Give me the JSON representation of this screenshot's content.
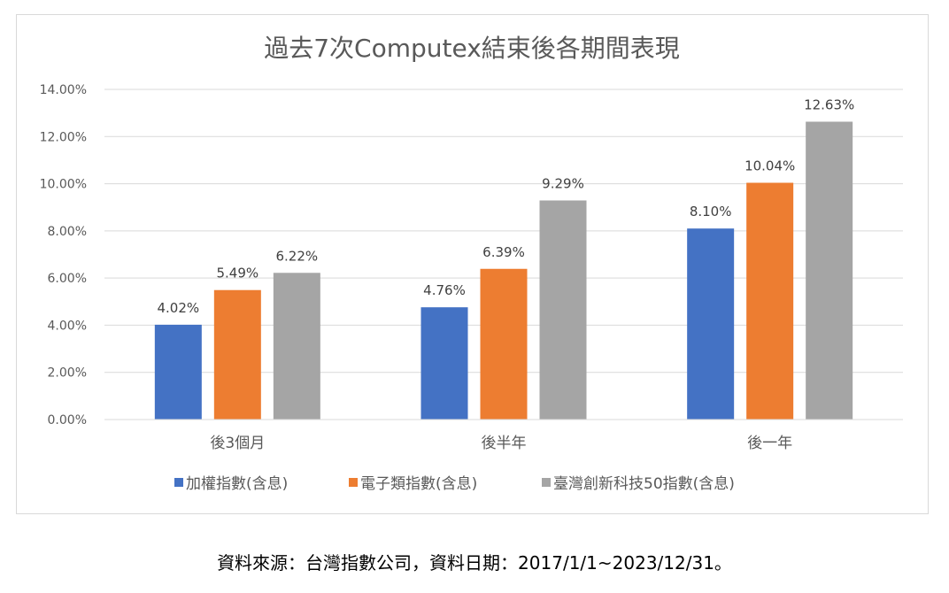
{
  "chart_data": {
    "type": "bar",
    "title": "過去7次Computex結束後各期間表現",
    "categories": [
      "後3個月",
      "後半年",
      "後一年"
    ],
    "series": [
      {
        "name": "加權指數(含息)",
        "color": "#4472C4",
        "values": [
          4.02,
          4.76,
          8.1
        ],
        "labels": [
          "4.02%",
          "4.76%",
          "8.10%"
        ]
      },
      {
        "name": "電子類指數(含息)",
        "color": "#ED7D31",
        "values": [
          5.49,
          6.39,
          10.04
        ],
        "labels": [
          "5.49%",
          "6.39%",
          "10.04%"
        ]
      },
      {
        "name": "臺灣創新科技50指數(含息)",
        "color": "#A5A5A5",
        "values": [
          6.22,
          9.29,
          12.63
        ],
        "labels": [
          "6.22%",
          "9.29%",
          "12.63%"
        ]
      }
    ],
    "yticks": [
      "0.00%",
      "2.00%",
      "4.00%",
      "6.00%",
      "8.00%",
      "10.00%",
      "12.00%",
      "14.00%"
    ],
    "ylim": [
      0,
      14
    ],
    "grid": true,
    "legend": "bottom"
  },
  "caption": "資料來源：台灣指數公司，資料日期：2017/1/1~2023/12/31。"
}
